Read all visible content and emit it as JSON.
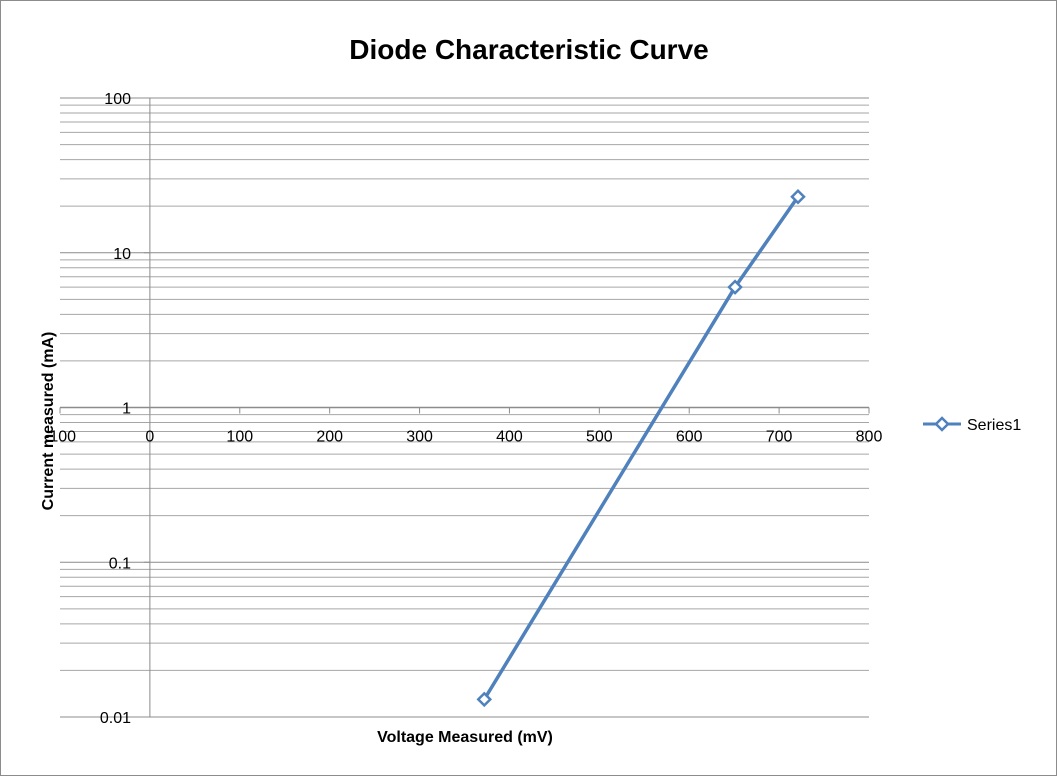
{
  "chart_data": {
    "type": "scatter",
    "title": "Diode Characteristic Curve",
    "xlabel": "Voltage Measured (mV)",
    "ylabel": "Current measured (mA)",
    "xlim": [
      -100,
      800
    ],
    "ylim": [
      0.01,
      100
    ],
    "yscale": "log",
    "x_ticks": [
      "-100",
      "0",
      "100",
      "200",
      "300",
      "400",
      "500",
      "600",
      "700",
      "800"
    ],
    "y_ticks": [
      "100",
      "10",
      "1",
      "0.1",
      "0.01"
    ],
    "grid": "horizontal-major-minor",
    "legend_position": "right",
    "series": [
      {
        "name": "Series1",
        "color": "#4f81bd",
        "marker": "diamond-open",
        "x": [
          372,
          651,
          721
        ],
        "y": [
          0.013,
          6.0,
          23.0
        ]
      }
    ]
  }
}
